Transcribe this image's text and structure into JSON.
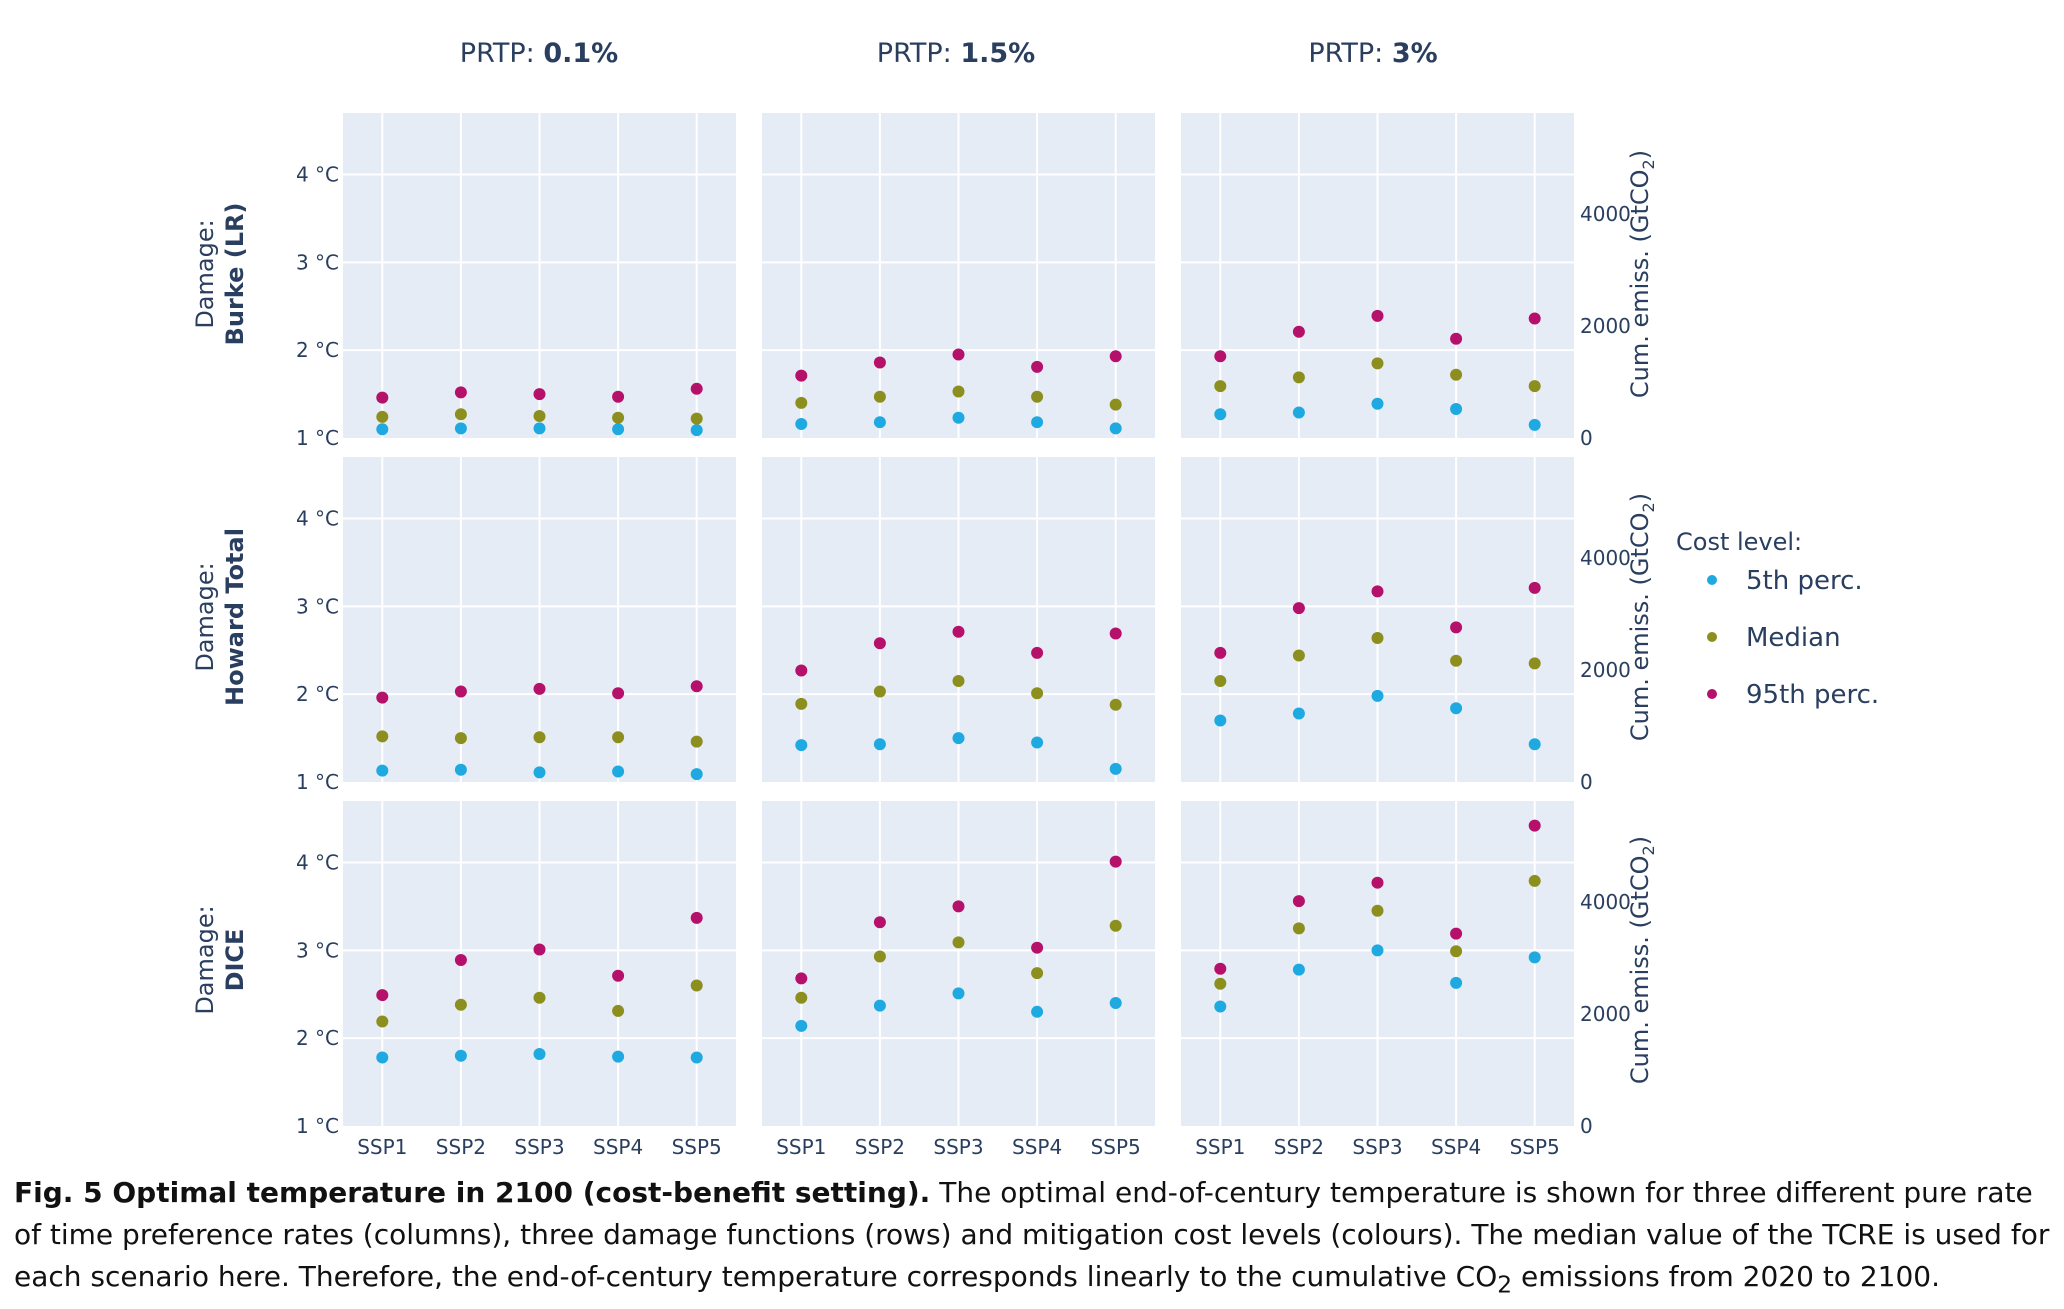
{
  "columns": [
    {
      "prefix": "PRTP: ",
      "value": "0.1%"
    },
    {
      "prefix": "PRTP: ",
      "value": "1.5%"
    },
    {
      "prefix": "PRTP: ",
      "value": "3%"
    }
  ],
  "rows": [
    {
      "prefix": "Damage:",
      "name": "Burke (LR)"
    },
    {
      "prefix": "Damage:",
      "name": "Howard Total"
    },
    {
      "prefix": "Damage:",
      "name": "DICE"
    }
  ],
  "y_ticks": [
    "1 °C",
    "2 °C",
    "3 °C",
    "4 °C"
  ],
  "y2_ticks": [
    "0",
    "2000",
    "4000"
  ],
  "y2_label": {
    "main": "Cum. emiss. (GtCO",
    "sub": "2",
    "end": ")"
  },
  "legend": {
    "title": "Cost level:",
    "items": [
      {
        "name": "5th perc.",
        "color": "#1fa9e1"
      },
      {
        "name": "Median",
        "color": "#8c8f1e"
      },
      {
        "name": "95th perc.",
        "color": "#b5106a"
      }
    ]
  },
  "chart_data": {
    "type": "scatter",
    "facet_columns": [
      "PRTP: 0.1%",
      "PRTP: 1.5%",
      "PRTP: 3%"
    ],
    "facet_rows": [
      "Damage: Burke (LR)",
      "Damage: Howard Total",
      "Damage: DICE"
    ],
    "categories": [
      "SSP1",
      "SSP2",
      "SSP3",
      "SSP4",
      "SSP5"
    ],
    "ylim": [
      1,
      4.7
    ],
    "y_unit": "°C",
    "y2lim": [
      0,
      5800
    ],
    "y2_unit": "GtCO2",
    "series_names": [
      "5th perc.",
      "Median",
      "95th perc."
    ],
    "panels": [
      [
        {
          "values": [
            [
              1.1,
              1.11,
              1.11,
              1.1,
              1.09
            ],
            [
              1.24,
              1.27,
              1.25,
              1.23,
              1.22
            ],
            [
              1.46,
              1.52,
              1.5,
              1.47,
              1.56
            ]
          ]
        },
        {
          "values": [
            [
              1.16,
              1.18,
              1.23,
              1.18,
              1.11
            ],
            [
              1.4,
              1.47,
              1.53,
              1.47,
              1.38
            ],
            [
              1.71,
              1.86,
              1.95,
              1.81,
              1.93
            ]
          ]
        },
        {
          "values": [
            [
              1.27,
              1.29,
              1.39,
              1.33,
              1.15
            ],
            [
              1.59,
              1.69,
              1.85,
              1.72,
              1.59
            ],
            [
              1.93,
              2.21,
              2.39,
              2.13,
              2.36
            ]
          ]
        }
      ],
      [
        {
          "values": [
            [
              1.13,
              1.14,
              1.11,
              1.12,
              1.09
            ],
            [
              1.52,
              1.5,
              1.51,
              1.51,
              1.46
            ],
            [
              1.96,
              2.03,
              2.06,
              2.01,
              2.09
            ]
          ]
        },
        {
          "values": [
            [
              1.42,
              1.43,
              1.5,
              1.45,
              1.15
            ],
            [
              1.89,
              2.03,
              2.15,
              2.01,
              1.88
            ],
            [
              2.27,
              2.58,
              2.71,
              2.47,
              2.69
            ]
          ]
        },
        {
          "values": [
            [
              1.7,
              1.78,
              1.98,
              1.84,
              1.43
            ],
            [
              2.15,
              2.44,
              2.64,
              2.38,
              2.35
            ],
            [
              2.47,
              2.98,
              3.17,
              2.76,
              3.21
            ]
          ]
        }
      ],
      [
        {
          "values": [
            [
              1.78,
              1.8,
              1.82,
              1.79,
              1.78
            ],
            [
              2.19,
              2.38,
              2.46,
              2.31,
              2.6
            ],
            [
              2.49,
              2.89,
              3.01,
              2.71,
              3.37
            ]
          ]
        },
        {
          "values": [
            [
              2.14,
              2.37,
              2.51,
              2.3,
              2.4
            ],
            [
              2.46,
              2.93,
              3.09,
              2.74,
              3.28
            ],
            [
              2.68,
              3.32,
              3.5,
              3.03,
              4.01
            ]
          ]
        },
        {
          "values": [
            [
              2.36,
              2.78,
              3.0,
              2.63,
              2.92
            ],
            [
              2.62,
              3.25,
              3.45,
              2.99,
              3.79
            ],
            [
              2.79,
              3.56,
              3.77,
              3.19,
              4.42
            ]
          ]
        }
      ]
    ]
  },
  "caption": {
    "label": "Fig. 5 Optimal temperature in 2100 (cost-benefit setting).",
    "text_1": " The optimal end-of-century temperature is shown for three different pure rate of time preference rates (columns), three damage functions (rows) and mitigation cost levels (colours). The median value of the TCRE is used for each scenario here. Therefore, the end-of-century temperature corresponds linearly to the cumulative CO",
    "sub": "2",
    "text_2": " emissions from 2020 to 2100."
  }
}
